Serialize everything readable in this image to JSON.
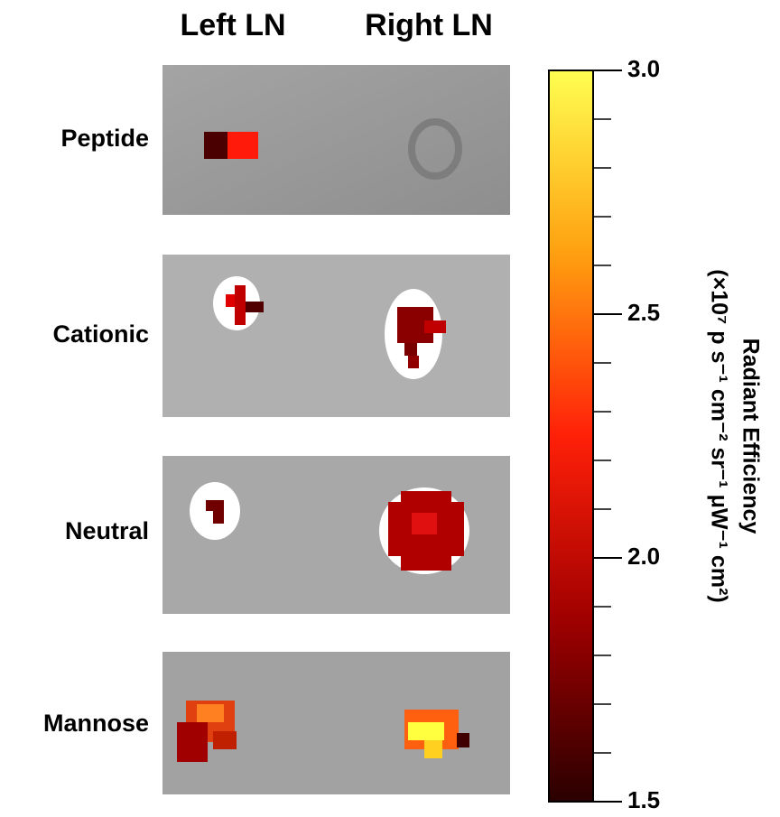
{
  "columns": [
    "Left LN",
    "Right LN"
  ],
  "rows": [
    "Peptide",
    "Cationic",
    "Neutral",
    "Mannose"
  ],
  "colorbar": {
    "title": [
      "Radiant Efficiency",
      "(×10⁷ p s⁻¹ cm⁻² sr⁻¹ μW⁻¹ cm²)"
    ],
    "range": [
      1.5,
      3.0
    ],
    "ticks": [
      {
        "value": 3,
        "label": "3.0"
      },
      {
        "value": 2.5,
        "label": "2.5"
      },
      {
        "value": 2,
        "label": "2.0"
      },
      {
        "value": 1.5,
        "label": "1.5"
      }
    ]
  }
}
